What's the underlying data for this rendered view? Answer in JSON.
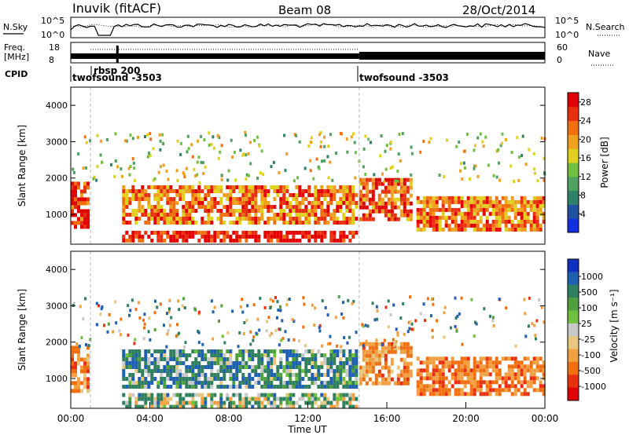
{
  "header": {
    "station": "Inuvik (fitACF)",
    "beam": "Beam 08",
    "date": "28/Oct/2014"
  },
  "top_panels": {
    "nsky_label": "N.Sky",
    "nsky_ticks": [
      "10^5",
      "10^0"
    ],
    "nsearch_label": "N.Search",
    "nsearch_ticks": [
      "10^5",
      "10^0"
    ],
    "freq_label_line1": "Freq.",
    "freq_label_line2": "[MHz]",
    "freq_ticks": [
      "18",
      "8"
    ],
    "nave_label": "Nave",
    "nave_ticks": [
      "60",
      "0"
    ],
    "cpid_label": "CPID",
    "cpid_segments": [
      {
        "name": "twofsound -3503",
        "start_hr": 0.0,
        "end_hr": 14.6
      },
      {
        "name": "rbsp 200",
        "start_hr": 1.0,
        "end_hr": 2.0
      },
      {
        "name": "twofsound -3503",
        "start_hr": 14.6,
        "end_hr": 24.0
      }
    ]
  },
  "power_panel": {
    "ylabel": "Slant Range [km]",
    "colorbar_label": "Power [dB]",
    "colorbar_ticks": [
      "28",
      "24",
      "20",
      "16",
      "12",
      "8",
      "4"
    ]
  },
  "velocity_panel": {
    "ylabel": "Slant Range [km]",
    "colorbar_label": "Velocity [m s⁻¹]",
    "colorbar_ticks": [
      "1000",
      "500",
      "100",
      "25",
      "-25",
      "-100",
      "-500",
      "-1000"
    ]
  },
  "x_axis": {
    "label": "Time UT",
    "ticks": [
      "00:00",
      "04:00",
      "08:00",
      "12:00",
      "16:00",
      "20:00",
      "00:00"
    ]
  },
  "y_ticks": [
    "4000",
    "3000",
    "2000",
    "1000"
  ],
  "colors": {
    "power": [
      "#1030e0",
      "#2050a0",
      "#30806a",
      "#50a060",
      "#70c040",
      "#e0d020",
      "#f0a020",
      "#f07010",
      "#e83010",
      "#e00000"
    ],
    "velocity": [
      "#1030c0",
      "#2060b0",
      "#308060",
      "#50a040",
      "#70c040",
      "#c8c8c8",
      "#e8c880",
      "#f0a040",
      "#f07010",
      "#e83010",
      "#e00000"
    ]
  },
  "chart_data": [
    {
      "type": "heatmap",
      "title": "Power",
      "x_range_hours": [
        0,
        24
      ],
      "ylim": [
        180,
        4500
      ],
      "colorbar_range_db": [
        0,
        30
      ],
      "echo_bands": [
        {
          "start_hr": 0.0,
          "end_hr": 0.9,
          "range_min": 700,
          "range_max": 1900,
          "power_db": 26
        },
        {
          "start_hr": 2.6,
          "end_hr": 14.4,
          "range_min": 250,
          "range_max": 550,
          "power_db": 28
        },
        {
          "start_hr": 2.6,
          "end_hr": 14.4,
          "range_min": 800,
          "range_max": 1800,
          "power_db": 22
        },
        {
          "start_hr": 14.6,
          "end_hr": 17.2,
          "range_min": 900,
          "range_max": 2000,
          "power_db": 24
        },
        {
          "start_hr": 17.5,
          "end_hr": 24.0,
          "range_min": 600,
          "range_max": 1500,
          "power_db": 22
        }
      ]
    },
    {
      "type": "heatmap",
      "title": "Velocity",
      "x_range_hours": [
        0,
        24
      ],
      "ylim": [
        180,
        4500
      ],
      "colorbar_range_ms": [
        -1000,
        1000
      ],
      "echo_bands": [
        {
          "start_hr": 0.0,
          "end_hr": 0.9,
          "range_min": 700,
          "range_max": 1900,
          "velocity_ms": -300
        },
        {
          "start_hr": 2.6,
          "end_hr": 14.4,
          "range_min": 250,
          "range_max": 600,
          "velocity_ms": 80
        },
        {
          "start_hr": 2.6,
          "end_hr": 14.4,
          "range_min": 800,
          "range_max": 1800,
          "velocity_ms": 200
        },
        {
          "start_hr": 14.6,
          "end_hr": 17.2,
          "range_min": 900,
          "range_max": 2000,
          "velocity_ms": -300
        },
        {
          "start_hr": 17.5,
          "end_hr": 24.0,
          "range_min": 600,
          "range_max": 1600,
          "velocity_ms": -350
        }
      ]
    }
  ]
}
